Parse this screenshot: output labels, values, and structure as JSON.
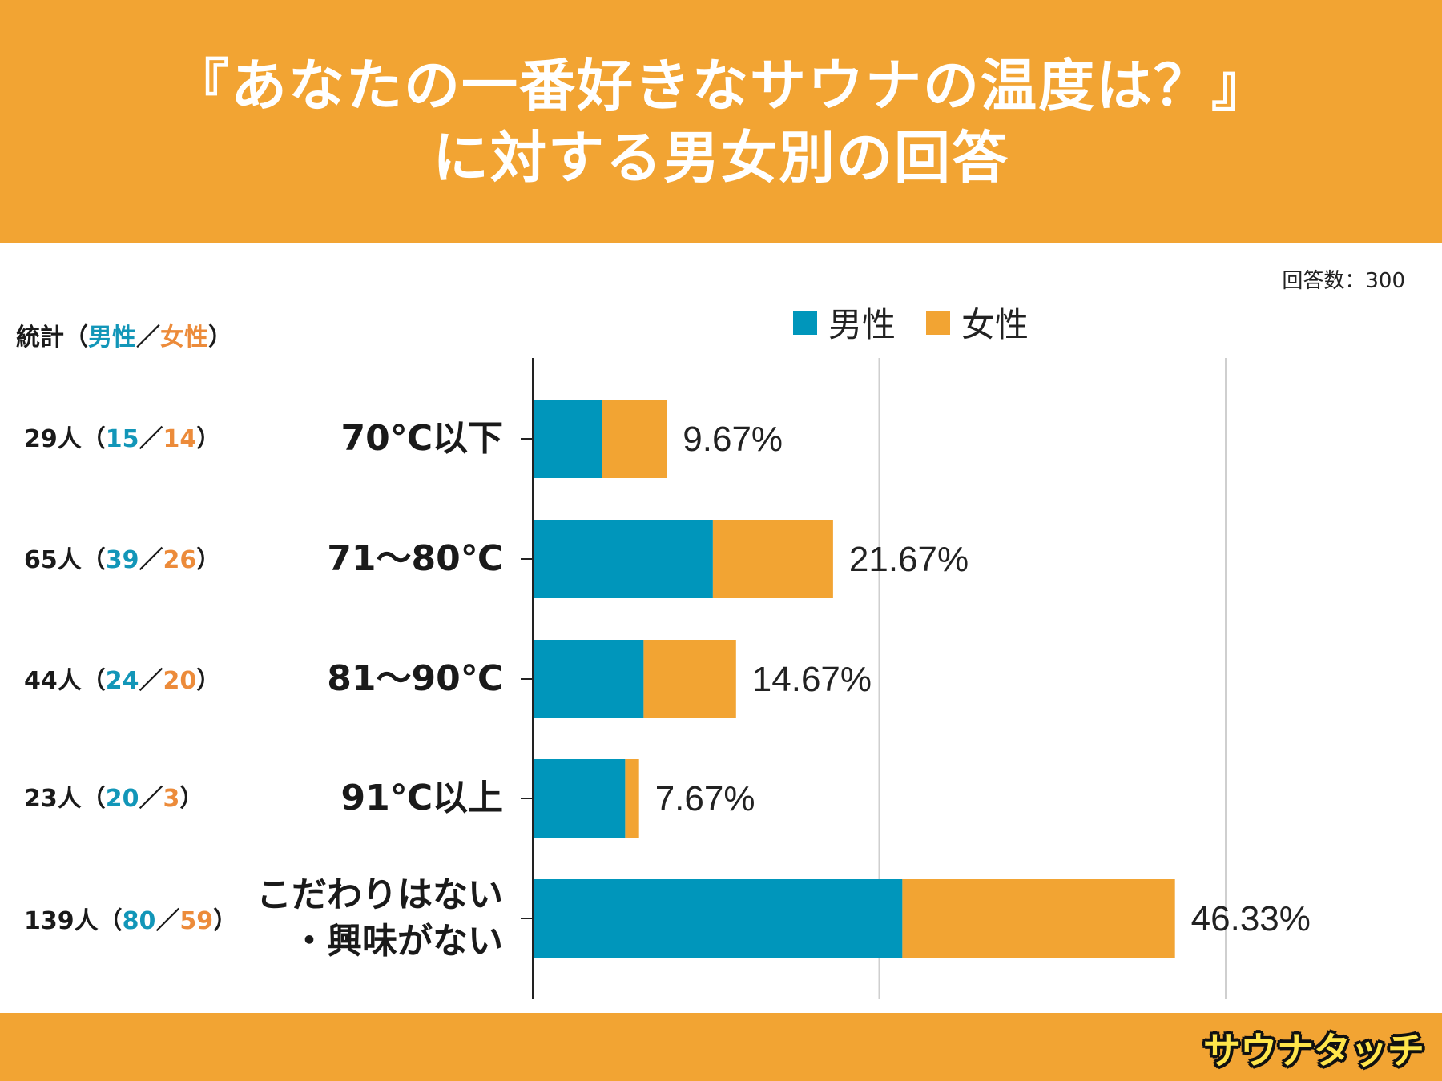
{
  "header": {
    "title_line1": "『あなたの一番好きなサウナの温度は？』",
    "title_line2": "に対する男女別の回答"
  },
  "respondents": "回答数：300",
  "legend": {
    "male": "男性",
    "female": "女性"
  },
  "stats_header": {
    "label": "統計（",
    "male": "男性",
    "slash": "／",
    "female": "女性",
    "close": "）"
  },
  "rows": [
    {
      "label_lines": [
        "70℃以下"
      ],
      "total": "29人（",
      "male": "15",
      "female": "14",
      "percent_label": "9.67%"
    },
    {
      "label_lines": [
        "71〜80℃"
      ],
      "total": "65人（",
      "male": "39",
      "female": "26",
      "percent_label": "21.67%"
    },
    {
      "label_lines": [
        "81〜90℃"
      ],
      "total": "44人（",
      "male": "24",
      "female": "20",
      "percent_label": "14.67%"
    },
    {
      "label_lines": [
        "91℃以上"
      ],
      "total": "23人（",
      "male": "20",
      "female": "3",
      "percent_label": "7.67%"
    },
    {
      "label_lines": [
        "こだわりはない",
        "・興味がない"
      ],
      "total": "139人（",
      "male": "80",
      "female": "59",
      "percent_label": "46.33%"
    }
  ],
  "colors": {
    "male": "#0096bb",
    "female": "#f2a433",
    "header": "#f2a433"
  },
  "logo_text": "サウナタッチ",
  "chart_data": {
    "type": "bar",
    "orientation": "horizontal",
    "stacked": true,
    "unit": "percent",
    "categories": [
      "70℃以下",
      "71〜80℃",
      "81〜90℃",
      "91℃以上",
      "こだわりはない・興味がない"
    ],
    "series": [
      {
        "name": "男性",
        "values": [
          5.0,
          13.0,
          8.0,
          6.67,
          26.67
        ]
      },
      {
        "name": "女性",
        "values": [
          4.67,
          8.67,
          6.67,
          1.0,
          19.67
        ]
      }
    ],
    "totals": [
      9.67,
      21.67,
      14.67,
      7.67,
      46.33
    ],
    "xlim": [
      0,
      50
    ],
    "grid": true,
    "legend_position": "top"
  }
}
